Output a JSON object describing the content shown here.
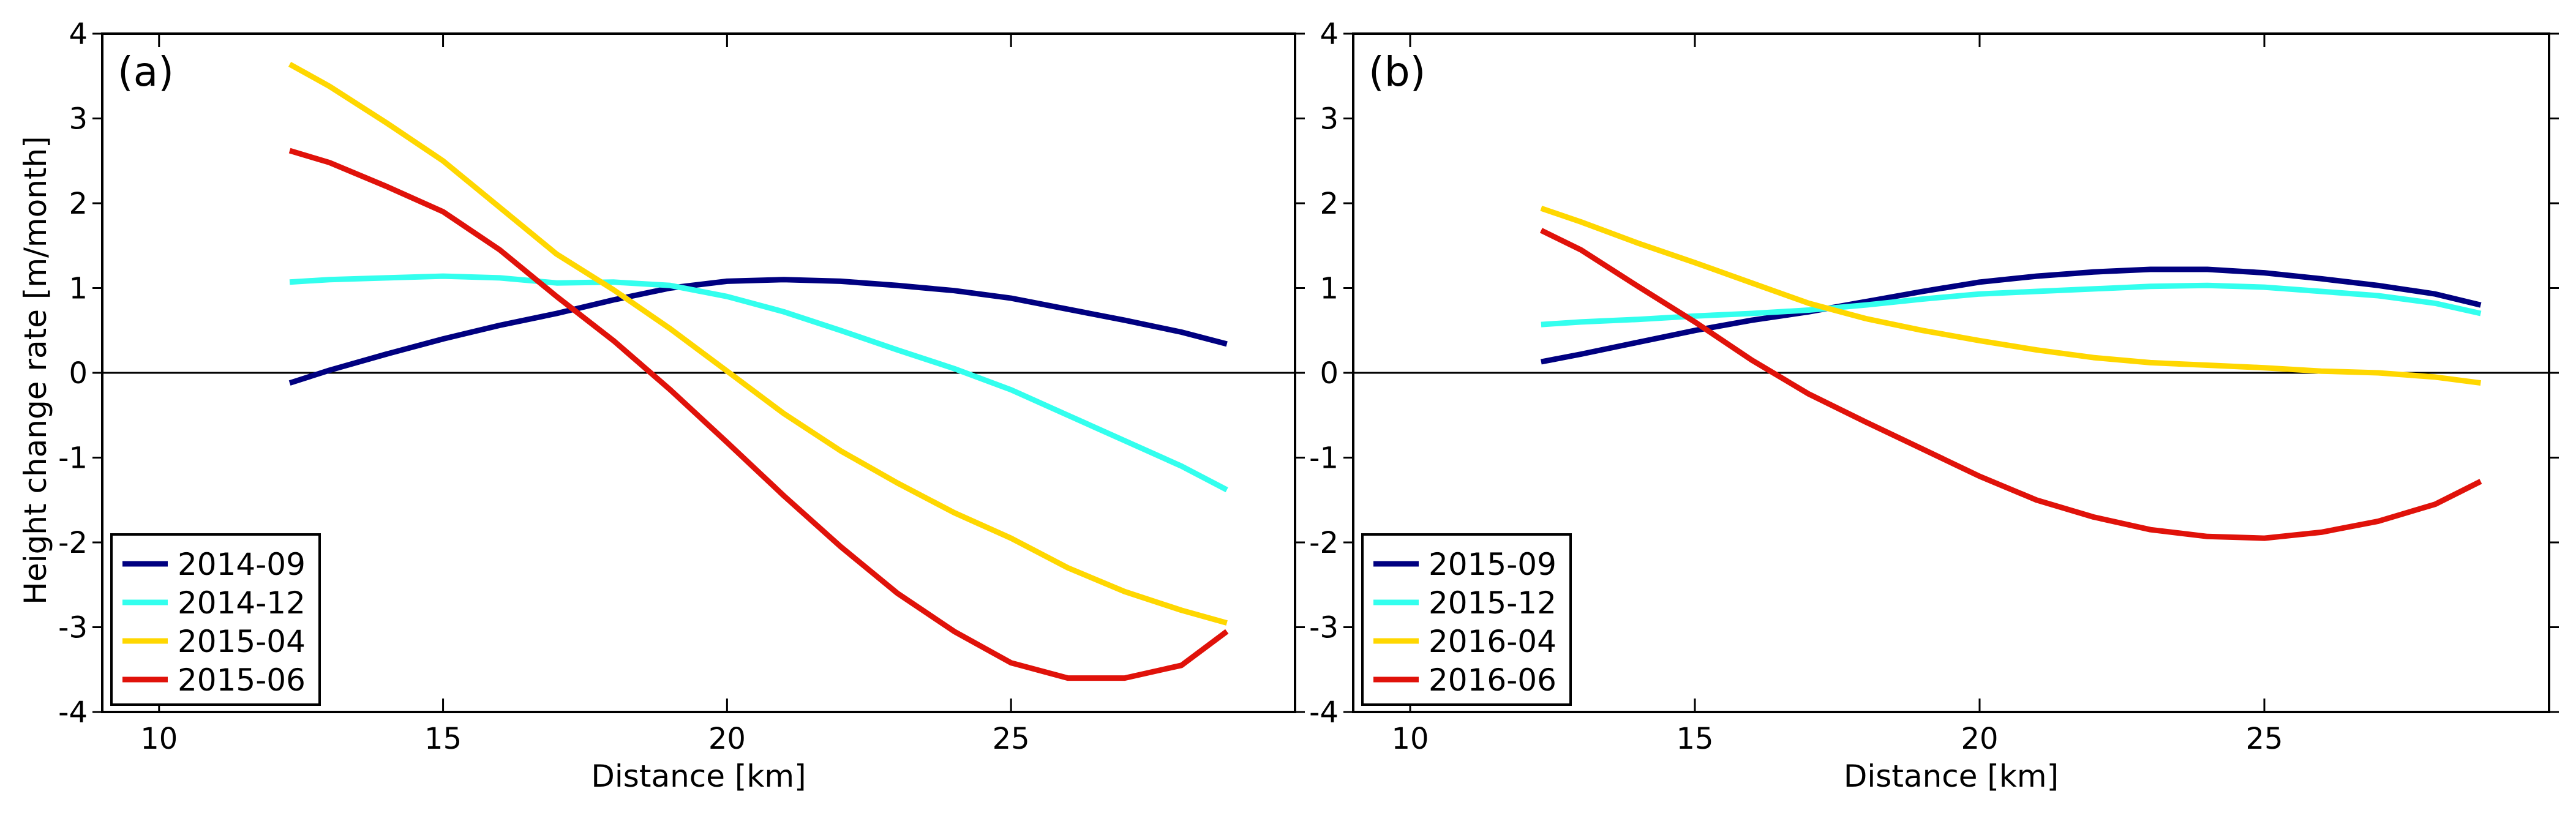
{
  "ylabel": "Height change rate [m/month]",
  "chart_data": [
    {
      "type": "line",
      "panel_label": "(a)",
      "xlabel": "Distance [km]",
      "ylabel": "Height change rate [m/month]",
      "xlim": [
        9,
        30
      ],
      "ylim": [
        -4,
        4
      ],
      "xticks": [
        10,
        15,
        20,
        25
      ],
      "yticks": [
        -4,
        -3,
        -2,
        -1,
        0,
        1,
        2,
        3,
        4
      ],
      "zero_line": true,
      "legend_position": "lower-left",
      "x": [
        12.3,
        13,
        14,
        15,
        16,
        17,
        18,
        19,
        20,
        21,
        22,
        23,
        24,
        25,
        26,
        27,
        28,
        28.8
      ],
      "series": [
        {
          "name": "2014-09",
          "color": "#000080",
          "values": [
            -0.12,
            0.03,
            0.22,
            0.4,
            0.56,
            0.7,
            0.86,
            1.0,
            1.08,
            1.1,
            1.08,
            1.03,
            0.97,
            0.88,
            0.75,
            0.62,
            0.48,
            0.34
          ]
        },
        {
          "name": "2014-12",
          "color": "#33FFEE",
          "values": [
            1.07,
            1.1,
            1.12,
            1.14,
            1.12,
            1.06,
            1.07,
            1.03,
            0.9,
            0.72,
            0.5,
            0.27,
            0.05,
            -0.2,
            -0.5,
            -0.8,
            -1.1,
            -1.38
          ]
        },
        {
          "name": "2015-04",
          "color": "#FFD700",
          "values": [
            3.64,
            3.38,
            2.95,
            2.5,
            1.95,
            1.4,
            0.98,
            0.52,
            0.02,
            -0.48,
            -0.92,
            -1.3,
            -1.65,
            -1.95,
            -2.3,
            -2.58,
            -2.8,
            -2.95
          ]
        },
        {
          "name": "2015-06",
          "color": "#E0120A",
          "values": [
            2.62,
            2.48,
            2.2,
            1.9,
            1.45,
            0.9,
            0.38,
            -0.2,
            -0.82,
            -1.45,
            -2.05,
            -2.6,
            -3.05,
            -3.42,
            -3.6,
            -3.6,
            -3.45,
            -3.05
          ]
        }
      ]
    },
    {
      "type": "line",
      "panel_label": "(b)",
      "xlabel": "Distance [km]",
      "ylabel": "",
      "xlim": [
        9,
        30
      ],
      "ylim": [
        -4,
        4
      ],
      "xticks": [
        10,
        15,
        20,
        25
      ],
      "yticks": [
        -4,
        -3,
        -2,
        -1,
        0,
        1,
        2,
        3,
        4
      ],
      "zero_line": true,
      "legend_position": "lower-left",
      "x": [
        12.3,
        13,
        14,
        15,
        16,
        17,
        18,
        19,
        20,
        21,
        22,
        23,
        24,
        25,
        26,
        27,
        28,
        28.8
      ],
      "series": [
        {
          "name": "2015-09",
          "color": "#000080",
          "values": [
            0.13,
            0.22,
            0.36,
            0.5,
            0.62,
            0.72,
            0.84,
            0.96,
            1.07,
            1.14,
            1.19,
            1.22,
            1.22,
            1.18,
            1.11,
            1.03,
            0.93,
            0.8
          ]
        },
        {
          "name": "2015-12",
          "color": "#33FFEE",
          "values": [
            0.57,
            0.6,
            0.63,
            0.67,
            0.7,
            0.74,
            0.8,
            0.87,
            0.93,
            0.96,
            0.99,
            1.02,
            1.03,
            1.01,
            0.96,
            0.91,
            0.82,
            0.7
          ]
        },
        {
          "name": "2016-04",
          "color": "#FFD700",
          "values": [
            1.94,
            1.78,
            1.53,
            1.3,
            1.06,
            0.82,
            0.64,
            0.5,
            0.38,
            0.27,
            0.18,
            0.12,
            0.09,
            0.06,
            0.02,
            0.0,
            -0.05,
            -0.12
          ]
        },
        {
          "name": "2016-06",
          "color": "#E0120A",
          "values": [
            1.68,
            1.45,
            1.02,
            0.6,
            0.15,
            -0.25,
            -0.58,
            -0.9,
            -1.22,
            -1.5,
            -1.7,
            -1.85,
            -1.93,
            -1.95,
            -1.88,
            -1.75,
            -1.55,
            -1.28
          ]
        }
      ]
    }
  ]
}
